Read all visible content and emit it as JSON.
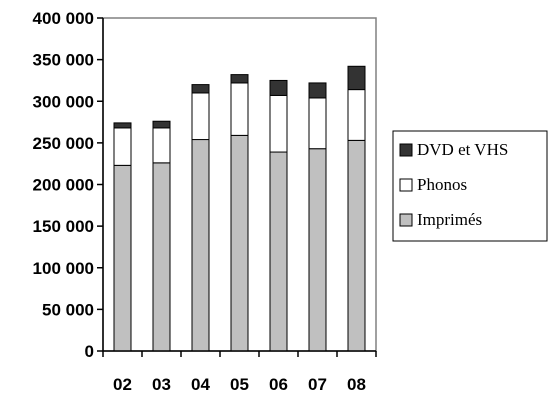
{
  "chart_data": {
    "type": "bar",
    "stacked": true,
    "categories": [
      "02",
      "03",
      "04",
      "05",
      "06",
      "07",
      "08"
    ],
    "series": [
      {
        "name": "Imprimés",
        "values": [
          223000,
          226000,
          254000,
          259000,
          239000,
          243000,
          253000
        ],
        "color": "#c0c0c0"
      },
      {
        "name": "Phonos",
        "values": [
          45000,
          42000,
          56000,
          63000,
          68000,
          61000,
          61000
        ],
        "color": "#ffffff"
      },
      {
        "name": "DVD et VHS",
        "values": [
          6000,
          8000,
          10000,
          10000,
          18000,
          18000,
          28000
        ],
        "color": "#333333"
      }
    ],
    "ylim": [
      0,
      400000
    ],
    "yticks": [
      "0",
      "50 000",
      "100 000",
      "150 000",
      "200 000",
      "250 000",
      "300 000",
      "350 000",
      "400 000"
    ],
    "grid": false,
    "legend_position": "right",
    "legend_order": [
      "DVD et VHS",
      "Phonos",
      "Imprimés"
    ]
  }
}
